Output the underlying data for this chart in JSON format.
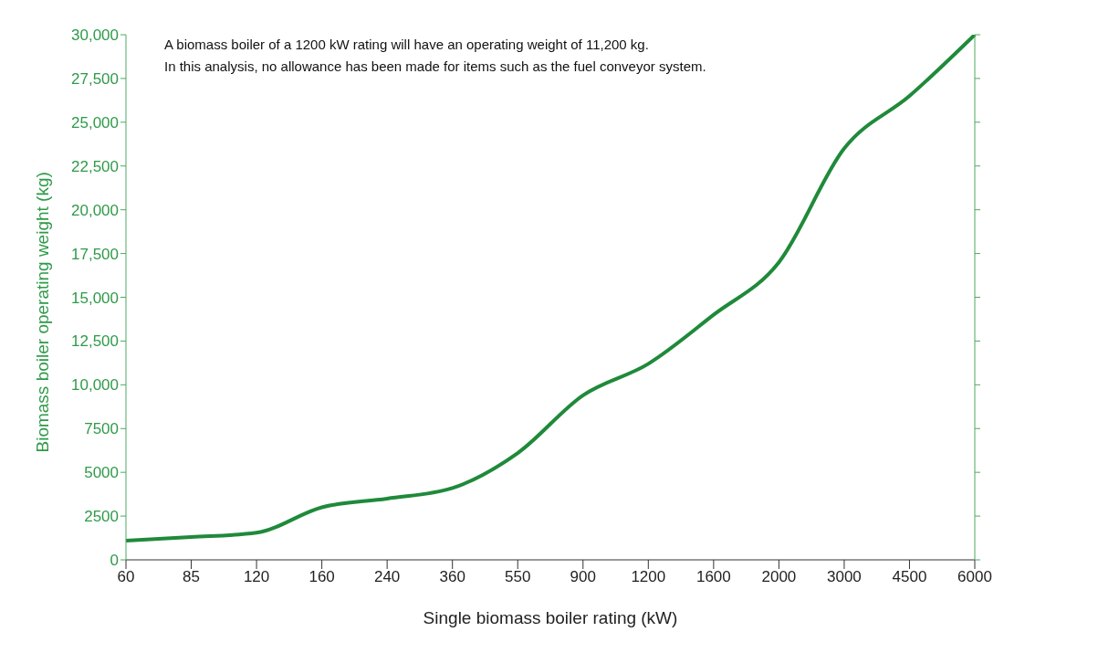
{
  "chart_data": {
    "type": "line",
    "xlabel": "Single biomass boiler rating (kW)",
    "ylabel": "Biomass boiler operating weight  (kg)",
    "annotations": [
      "A biomass boiler of a 1200 kW rating will have an operating weight of 11,200 kg.",
      "In this analysis, no allowance has been made for items such as the fuel conveyor system."
    ],
    "categories": [
      "60",
      "85",
      "120",
      "160",
      "240",
      "360",
      "550",
      "900",
      "1200",
      "1600",
      "2000",
      "3000",
      "4500",
      "6000"
    ],
    "series": [
      {
        "color": "#1f8a3a",
        "values": [
          1100,
          1300,
          1550,
          3000,
          3500,
          4100,
          6100,
          9400,
          11200,
          14000,
          17000,
          23500,
          26500,
          30000
        ]
      }
    ],
    "ylim": [
      0,
      30000
    ],
    "yticks": [
      0,
      2500,
      5000,
      7500,
      {
        "value": 10000,
        "label": "10,000"
      },
      {
        "value": 12500,
        "label": "12,500"
      },
      {
        "value": 15000,
        "label": "15,000"
      },
      {
        "value": 17500,
        "label": "17,500"
      },
      {
        "value": 20000,
        "label": "20,000"
      },
      {
        "value": 22500,
        "label": "22,500"
      },
      {
        "value": 25000,
        "label": "25,000"
      },
      {
        "value": 27500,
        "label": "27,500"
      },
      {
        "value": 30000,
        "label": "30,000"
      }
    ],
    "grid": false,
    "legend": false,
    "marker": "none",
    "line_style": "solid"
  }
}
